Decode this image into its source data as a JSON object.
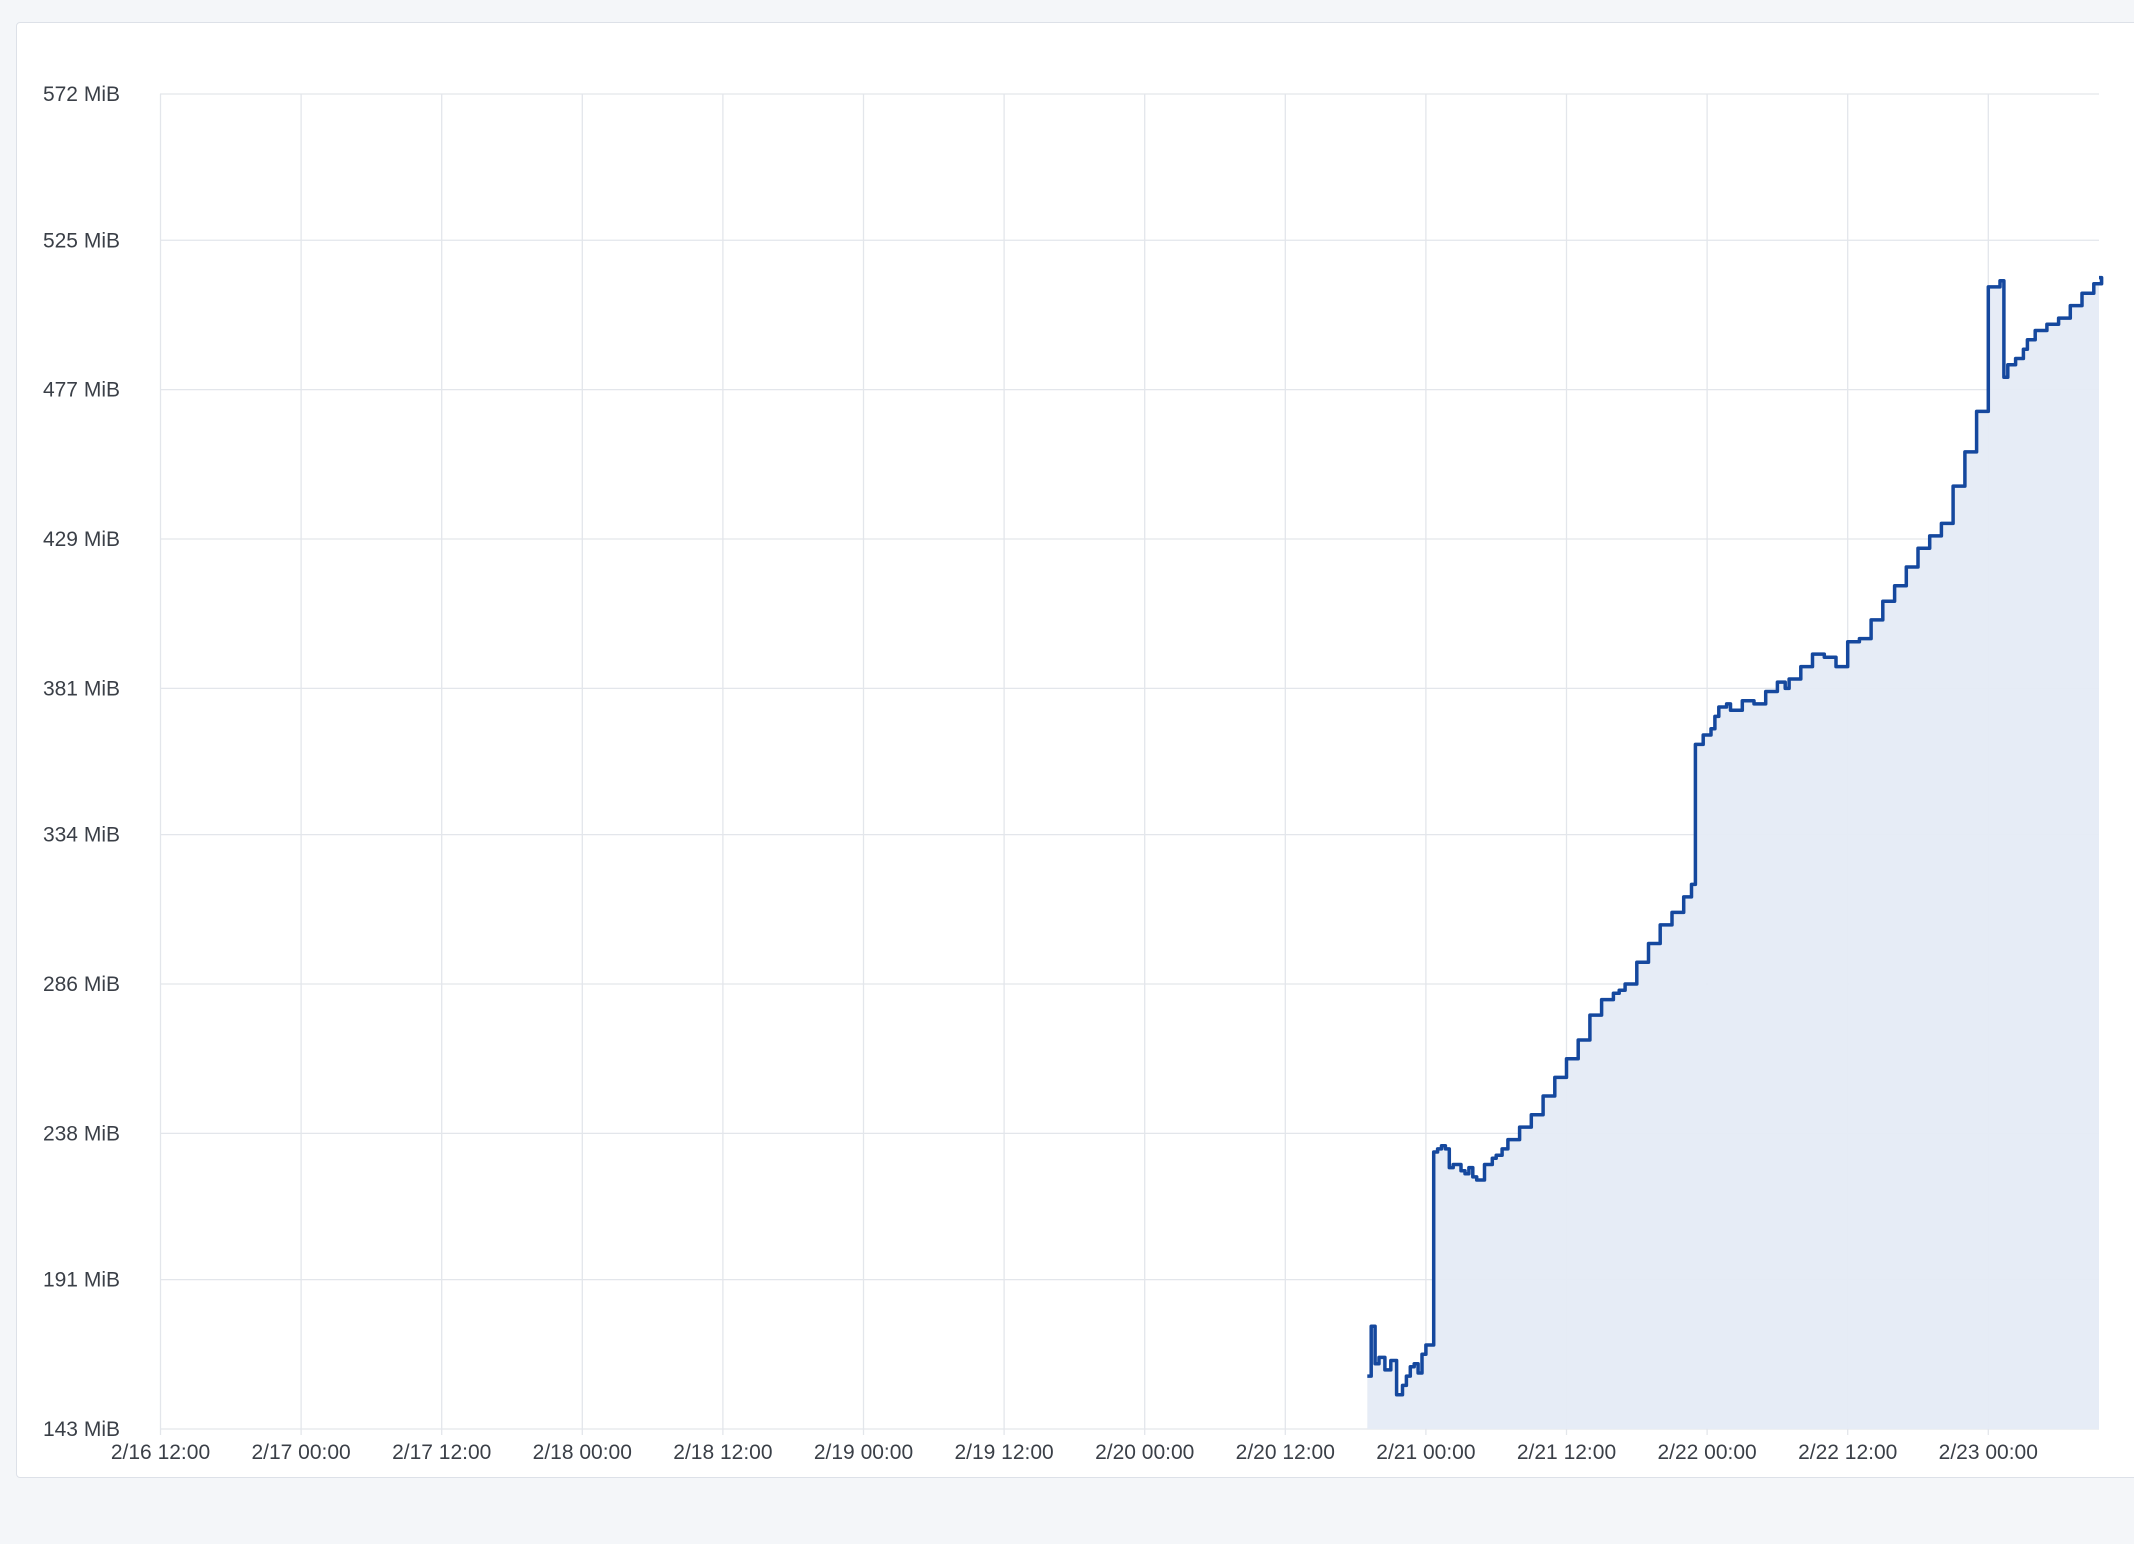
{
  "chart_data": {
    "type": "area",
    "title": "",
    "xlabel": "",
    "ylabel": "",
    "x_ticks": [
      "2/16 12:00",
      "2/17 00:00",
      "2/17 12:00",
      "2/18 00:00",
      "2/18 12:00",
      "2/19 00:00",
      "2/19 12:00",
      "2/20 00:00",
      "2/20 12:00",
      "2/21 00:00",
      "2/21 12:00",
      "2/22 00:00",
      "2/22 12:00",
      "2/23 00:00"
    ],
    "y_ticks": [
      "143 MiB",
      "191 MiB",
      "238 MiB",
      "286 MiB",
      "334 MiB",
      "381 MiB",
      "429 MiB",
      "477 MiB",
      "525 MiB",
      "572 MiB"
    ],
    "ylim": [
      143,
      572
    ],
    "y_unit": "MiB",
    "grid": true,
    "legend": "none",
    "colors": {
      "line": "#15489e",
      "fill": "#e5ebf5",
      "grid": "#e3e6eb",
      "text": "#3a3f47"
    },
    "series": [
      {
        "x": [
          "2/20 19:00",
          "2/20 19:20",
          "2/20 19:40",
          "2/20 20:00",
          "2/20 20:30",
          "2/20 21:00",
          "2/20 21:30",
          "2/20 22:00",
          "2/20 22:20",
          "2/20 22:40",
          "2/20 23:00",
          "2/20 23:20",
          "2/20 23:40",
          "2/21 00:00",
          "2/21 00:20",
          "2/21 00:40",
          "2/21 01:00",
          "2/21 01:20",
          "2/21 01:40",
          "2/21 02:00",
          "2/21 02:20",
          "2/21 03:00",
          "2/21 03:20",
          "2/21 03:40",
          "2/21 04:00",
          "2/21 04:20",
          "2/21 05:00",
          "2/21 05:40",
          "2/21 06:00",
          "2/21 06:30",
          "2/21 07:00",
          "2/21 08:00",
          "2/21 09:00",
          "2/21 10:00",
          "2/21 11:00",
          "2/21 12:00",
          "2/21 13:00",
          "2/21 14:00",
          "2/21 15:00",
          "2/21 16:00",
          "2/21 16:30",
          "2/21 17:00",
          "2/21 18:00",
          "2/21 19:00",
          "2/21 20:00",
          "2/21 21:00",
          "2/21 22:00",
          "2/21 22:40",
          "2/21 23:00",
          "2/21 23:40",
          "2/22 00:20",
          "2/22 00:40",
          "2/22 01:00",
          "2/22 01:40",
          "2/22 02:00",
          "2/22 03:00",
          "2/22 04:00",
          "2/22 05:00",
          "2/22 06:00",
          "2/22 06:40",
          "2/22 07:00",
          "2/22 08:00",
          "2/22 09:00",
          "2/22 10:00",
          "2/22 11:00",
          "2/22 12:00",
          "2/22 13:00",
          "2/22 14:00",
          "2/22 15:00",
          "2/22 16:00",
          "2/22 17:00",
          "2/22 18:00",
          "2/22 19:00",
          "2/22 20:00",
          "2/22 21:00",
          "2/22 22:00",
          "2/22 23:00",
          "2/23 00:00",
          "2/23 01:00",
          "2/23 01:20",
          "2/23 01:40",
          "2/23 02:20",
          "2/23 03:00",
          "2/23 03:20",
          "2/23 04:00",
          "2/23 05:00",
          "2/23 06:00",
          "2/23 07:00",
          "2/23 08:00",
          "2/23 09:00",
          "2/23 09:40"
        ],
        "y": [
          160,
          176,
          164,
          166,
          162,
          165,
          154,
          157,
          160,
          163,
          164,
          161,
          167,
          170,
          170,
          232,
          233,
          234,
          233,
          227,
          228,
          226,
          225,
          227,
          224,
          223,
          228,
          230,
          231,
          233,
          236,
          240,
          244,
          250,
          256,
          262,
          268,
          276,
          281,
          283,
          284,
          286,
          293,
          299,
          305,
          309,
          314,
          318,
          363,
          366,
          368,
          372,
          375,
          376,
          374,
          377,
          376,
          380,
          383,
          381,
          384,
          388,
          392,
          391,
          388,
          396,
          397,
          403,
          409,
          414,
          420,
          426,
          430,
          434,
          446,
          457,
          470,
          510,
          512,
          481,
          485,
          487,
          490,
          493,
          496,
          498,
          500,
          504,
          508,
          511,
          513
        ]
      }
    ]
  }
}
